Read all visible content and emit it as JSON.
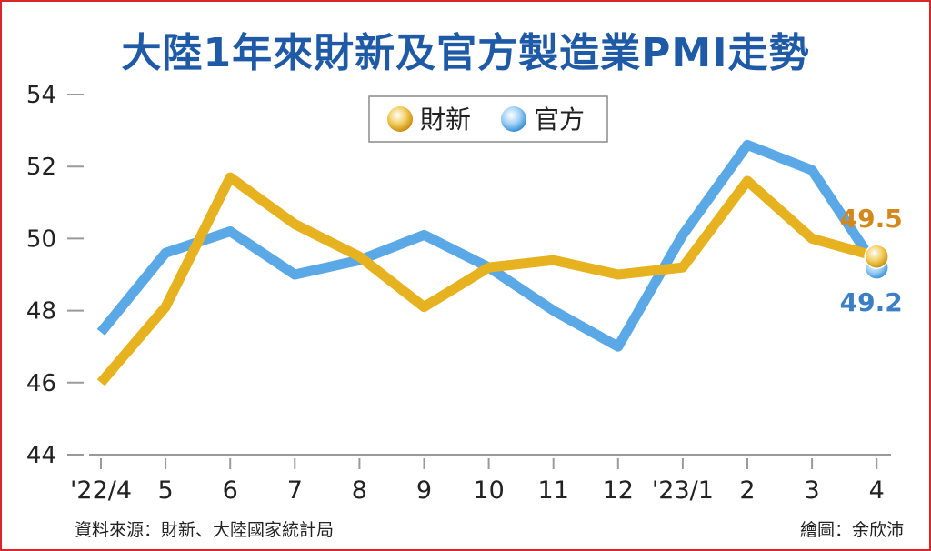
{
  "chart_data": {
    "type": "line",
    "title": "大陸1年來財新及官方製造業PMI走勢",
    "categories": [
      "'22/4",
      "5",
      "6",
      "7",
      "8",
      "9",
      "10",
      "11",
      "12",
      "'23/1",
      "2",
      "3",
      "4"
    ],
    "ylim": [
      44,
      54
    ],
    "yticks": [
      44,
      46,
      48,
      50,
      52,
      54
    ],
    "grid": false,
    "legend_position": "top-right",
    "series": [
      {
        "name": "財新",
        "color": "#e6b21f",
        "values": [
          46.0,
          48.1,
          51.7,
          50.4,
          49.5,
          48.1,
          49.2,
          49.4,
          49.0,
          49.2,
          51.6,
          50.0,
          49.5
        ]
      },
      {
        "name": "官方",
        "color": "#5aa8e6",
        "values": [
          47.4,
          49.6,
          50.2,
          49.0,
          49.4,
          50.1,
          49.2,
          48.0,
          47.0,
          50.1,
          52.6,
          51.9,
          49.2
        ]
      }
    ],
    "annotations": [
      {
        "text": "49.5",
        "series": 0,
        "index": 12,
        "color": "#d4881c"
      },
      {
        "text": "49.2",
        "series": 1,
        "index": 12,
        "color": "#3b7fc4"
      }
    ]
  },
  "footer": {
    "source": "資料來源：財新、大陸國家統計局",
    "credit": "繪圖：余欣沛"
  }
}
